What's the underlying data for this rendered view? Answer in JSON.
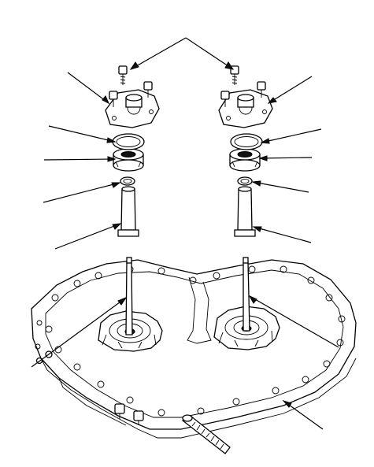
{
  "diagram": {
    "kind": "exploded-parts-illustration",
    "callout_labels": [],
    "colors": {
      "line": "#000000",
      "background": "#ffffff"
    }
  }
}
